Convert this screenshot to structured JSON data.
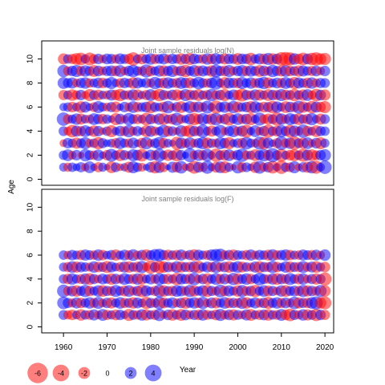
{
  "chart_data": [
    {
      "type": "scatter",
      "subtype": "bubble",
      "title": "Joint sample residuals log(N)",
      "ylabel": "Age",
      "xlim": [
        1955,
        2022
      ],
      "ylim": [
        -0.5,
        11.5
      ],
      "yticks": [
        0,
        2,
        4,
        6,
        8,
        10
      ],
      "ages": [
        1,
        2,
        3,
        4,
        5,
        6,
        7,
        8,
        9,
        10
      ],
      "years": [
        1960,
        1961,
        1962,
        1963,
        1964,
        1965,
        1966,
        1967,
        1968,
        1969,
        1970,
        1971,
        1972,
        1973,
        1974,
        1975,
        1976,
        1977,
        1978,
        1979,
        1980,
        1981,
        1982,
        1983,
        1984,
        1985,
        1986,
        1987,
        1988,
        1989,
        1990,
        1991,
        1992,
        1993,
        1994,
        1995,
        1996,
        1997,
        1998,
        1999,
        2000,
        2001,
        2002,
        2003,
        2004,
        2005,
        2006,
        2007,
        2008,
        2009,
        2010,
        2011,
        2012,
        2013,
        2014,
        2015,
        2016,
        2017,
        2018,
        2019,
        2020
      ],
      "residuals": [
        [
          1.1,
          -1.2,
          1.3,
          0.9,
          1.5,
          -1.0,
          2.0,
          0.8,
          -1.5,
          1.2,
          0.6,
          -2.0,
          1.4,
          -0.9,
          1.0,
          -1.8,
          2.1,
          1.3,
          -1.1,
          0.7,
          1.6,
          -2.2,
          1.9,
          -1.4,
          0.5,
          1.8,
          -1.6,
          2.3,
          -0.8,
          1.1,
          -2.4,
          1.7,
          -1.3,
          2.5,
          0.9,
          -1.7,
          2.0,
          -2.1,
          1.2,
          -0.6,
          2.2,
          -1.5,
          1.4,
          0.8,
          -1.9,
          2.4,
          -1.2,
          1.6,
          -2.3,
          1.0,
          -2.6,
          1.3,
          -1.4,
          2.1,
          -0.9,
          1.5,
          -1.8,
          2.2,
          -2.5,
          1.1,
          2.6
        ],
        [
          1.3,
          2.0,
          -1.1,
          1.6,
          -0.7,
          2.2,
          1.4,
          -1.3,
          1.9,
          0.8,
          -1.6,
          2.4,
          1.2,
          -2.0,
          1.5,
          -1.0,
          2.1,
          1.7,
          -2.3,
          0.9,
          1.8,
          -1.4,
          2.5,
          1.1,
          -1.9,
          1.3,
          -2.2,
          1.6,
          0.7,
          2.8,
          -1.2,
          1.9,
          -1.5,
          2.3,
          1.0,
          -2.6,
          1.4,
          -1.8,
          2.0,
          -1.1,
          1.7,
          2.6,
          -1.3,
          1.2,
          -2.0,
          1.5,
          2.2,
          -1.6,
          2.9,
          1.4,
          -2.4,
          1.1,
          -1.7,
          -2.1,
          1.3,
          -2.5,
          1.8,
          -2.0,
          -1.4,
          1.6,
          2.1
        ],
        [
          -0.9,
          1.6,
          1.2,
          -1.8,
          1.4,
          2.1,
          -1.1,
          1.3,
          -2.2,
          1.5,
          0.9,
          1.1,
          -1.5,
          2.0,
          1.2,
          -1.3,
          1.8,
          0.9,
          -1.7,
          2.2,
          -1.0,
          1.4,
          2.3,
          -1.6,
          1.1,
          0.7,
          -2.4,
          1.9,
          -1.3,
          2.0,
          -1.1,
          1.5,
          2.2,
          -1.9,
          1.3,
          -1.2,
          2.1,
          1.6,
          -2.1,
          1.0,
          1.4,
          -1.6,
          2.3,
          1.2,
          -1.1,
          2.5,
          -2.2,
          1.8,
          0.8,
          -1.5,
          2.7,
          -1.3,
          1.9,
          -2.6,
          1.4,
          -1.8,
          2.0,
          -1.0,
          1.7,
          -2.1,
          1.2
        ],
        [
          1.4,
          -1.1,
          -2.3,
          1.8,
          -1.5,
          2.0,
          1.2,
          -1.9,
          1.6,
          -0.8,
          1.3,
          -2.1,
          1.0,
          1.7,
          -1.4,
          2.2,
          -1.2,
          1.5,
          0.9,
          -2.0,
          1.9,
          -1.3,
          1.1,
          2.4,
          -1.7,
          1.4,
          -0.9,
          2.0,
          -1.6,
          -2.2,
          1.6,
          -1.4,
          2.5,
          1.1,
          -1.8,
          1.2,
          2.3,
          -1.0,
          1.5,
          2.1,
          -1.3,
          1.8,
          -2.4,
          1.0,
          2.0,
          -1.1,
          1.6,
          -2.5,
          1.3,
          -1.7,
          2.2,
          1.4,
          -2.3,
          1.9,
          -1.2,
          2.6,
          -1.6,
          1.1,
          -2.0,
          1.5,
          1.3
        ],
        [
          2.6,
          -1.4,
          1.2,
          1.9,
          -1.8,
          1.1,
          -1.2,
          2.0,
          1.5,
          -1.6,
          1.3,
          0.8,
          -2.1,
          1.7,
          -1.0,
          2.2,
          1.4,
          -1.5,
          1.1,
          -2.3,
          1.6,
          -1.1,
          1.9,
          -2.0,
          1.2,
          -1.7,
          2.4,
          -1.3,
          1.0,
          1.8,
          -2.2,
          -1.5,
          2.1,
          1.3,
          -1.9,
          2.3,
          -1.1,
          1.6,
          -2.4,
          1.2,
          2.0,
          -1.4,
          1.7,
          -2.1,
          1.1,
          2.5,
          -1.3,
          -1.8,
          1.4,
          -2.6,
          1.9,
          -1.2,
          2.1,
          1.5,
          -2.0,
          1.3,
          -1.6,
          2.2,
          1.0,
          -1.8,
          1.4
        ],
        [
          1.0,
          1.3,
          -1.6,
          1.1,
          -2.0,
          1.8,
          0.9,
          -1.4,
          2.1,
          1.2,
          -1.1,
          1.5,
          -1.8,
          0.8,
          1.6,
          -1.2,
          2.0,
          -1.5,
          1.3,
          1.7,
          -2.2,
          1.4,
          1.1,
          -1.7,
          2.3,
          -0.9,
          1.5,
          -2.0,
          1.2,
          2.1,
          -1.6,
          1.8,
          -1.3,
          2.4,
          1.0,
          -2.5,
          1.4,
          1.9,
          -1.2,
          2.2,
          -1.8,
          1.3,
          1.6,
          -2.1,
          2.0,
          1.2,
          -1.7,
          1.5,
          -2.3,
          1.9,
          1.1,
          -2.0,
          1.7,
          -1.4,
          2.4,
          -1.9,
          1.2,
          -2.2,
          1.8,
          -1.6,
          -2.1
        ],
        [
          -1.5,
          1.2,
          -1.9,
          -1.3,
          1.6,
          -1.0,
          -2.1,
          1.4,
          -1.7,
          1.1,
          -1.2,
          1.8,
          -1.6,
          -2.2,
          1.3,
          -1.4,
          1.9,
          -1.8,
          1.0,
          -1.5,
          2.0,
          -1.3,
          -2.3,
          1.5,
          -1.1,
          1.7,
          -1.9,
          -1.2,
          2.1,
          -1.7,
          1.4,
          -2.0,
          1.2,
          -1.5,
          2.2,
          -1.4,
          1.6,
          -2.1,
          1.1,
          1.8,
          -1.6,
          -2.4,
          1.5,
          -1.3,
          1.9,
          -1.8,
          1.2,
          -2.0,
          1.6,
          -1.5,
          2.1,
          -1.7,
          1.4,
          -2.2,
          1.3,
          -1.9,
          2.0,
          -1.2,
          -2.3,
          1.7,
          -1.8
        ],
        [
          2.0,
          1.4,
          1.8,
          -1.1,
          1.5,
          1.9,
          -1.3,
          1.2,
          1.7,
          -1.6,
          1.3,
          2.1,
          1.0,
          -1.4,
          1.6,
          1.2,
          -1.9,
          1.8,
          1.1,
          1.5,
          -1.2,
          2.2,
          1.4,
          -1.7,
          1.9,
          1.3,
          -1.5,
          2.0,
          1.6,
          -1.8,
          1.2,
          2.3,
          1.4,
          -1.3,
          1.7,
          2.6,
          1.1,
          -2.0,
          1.8,
          1.5,
          -1.6,
          2.1,
          1.3,
          1.9,
          -1.4,
          1.6,
          2.2,
          -1.8,
          1.2,
          1.7,
          -1.5,
          2.0,
          1.4,
          -2.1,
          1.8,
          1.3,
          -1.7,
          1.9,
          -1.2,
          1.5,
          1.4
        ],
        [
          2.2,
          -1.3,
          1.6,
          2.1,
          -1.5,
          1.9,
          1.4,
          -2.0,
          1.7,
          -1.2,
          1.5,
          1.8,
          -1.6,
          2.0,
          -1.1,
          1.6,
          2.3,
          1.3,
          -1.4,
          2.5,
          -1.7,
          1.2,
          1.9,
          -1.8,
          1.5,
          2.1,
          -1.3,
          1.7,
          -2.2,
          1.4,
          2.0,
          -1.6,
          1.8,
          1.3,
          -1.9,
          2.4,
          1.5,
          -1.7,
          2.1,
          -1.2,
          1.6,
          2.0,
          -1.5,
          1.9,
          1.4,
          -2.0,
          1.7,
          -1.3,
          2.2,
          1.5,
          -1.8,
          2.0,
          -1.6,
          1.4,
          -1.9,
          1.8,
          1.3,
          -1.5,
          1.7,
          -1.1,
          1.6
        ],
        [
          -1.8,
          1.3,
          -1.5,
          -2.0,
          -2.3,
          1.2,
          -2.4,
          -1.4,
          1.6,
          -1.1,
          1.7,
          1.5,
          -1.3,
          1.8,
          1.4,
          -1.6,
          -2.6,
          1.2,
          -1.7,
          1.3,
          1.9,
          -1.5,
          1.4,
          1.8,
          -1.2,
          1.6,
          1.3,
          -1.9,
          1.5,
          -2.1,
          1.7,
          1.2,
          -1.4,
          1.9,
          -1.6,
          2.0,
          1.3,
          -1.8,
          1.6,
          1.4,
          -2.0,
          1.7,
          1.5,
          -2.2,
          1.3,
          1.8,
          -1.7,
          2.1,
          -1.9,
          1.6,
          -2.7,
          -2.8,
          -2.5,
          1.9,
          -1.6,
          -2.3,
          1.7,
          -2.2,
          -2.6,
          -1.9,
          -2.1
        ]
      ]
    },
    {
      "type": "scatter",
      "subtype": "bubble",
      "title": "Joint sample residuals log(F)",
      "ylabel": "Age",
      "xlabel": "Year",
      "xlim": [
        1955,
        2022
      ],
      "ylim": [
        -0.5,
        11.5
      ],
      "yticks": [
        0,
        2,
        4,
        6,
        8,
        10
      ],
      "xticks": [
        1960,
        1970,
        1980,
        1990,
        2000,
        2010,
        2020
      ],
      "ages": [
        1,
        2,
        3,
        4,
        5,
        6
      ],
      "years": [
        1960,
        1961,
        1962,
        1963,
        1964,
        1965,
        1966,
        1967,
        1968,
        1969,
        1970,
        1971,
        1972,
        1973,
        1974,
        1975,
        1976,
        1977,
        1978,
        1979,
        1980,
        1981,
        1982,
        1983,
        1984,
        1985,
        1986,
        1987,
        1988,
        1989,
        1990,
        1991,
        1992,
        1993,
        1994,
        1995,
        1996,
        1997,
        1998,
        1999,
        2000,
        2001,
        2002,
        2003,
        2004,
        2005,
        2006,
        2007,
        2008,
        2009,
        2010,
        2011,
        2012,
        2013,
        2014,
        2015,
        2016,
        2017,
        2018,
        2019,
        2020
      ],
      "residuals": [
        [
          1.4,
          -1.2,
          -1.6,
          1.1,
          -1.9,
          1.3,
          -1.4,
          1.8,
          -1.1,
          2.0,
          -1.5,
          1.2,
          -1.7,
          1.6,
          1.0,
          -2.1,
          1.4,
          -1.3,
          1.9,
          -1.8,
          1.2,
          -1.5,
          2.2,
          -1.0,
          1.6,
          -1.9,
          1.3,
          -2.0,
          1.7,
          -1.2,
          1.5,
          -1.6,
          1.9,
          -1.4,
          1.1,
          -1.7,
          2.1,
          -1.3,
          1.6,
          -1.8,
          1.4,
          -1.1,
          1.8,
          -2.0,
          1.2,
          -1.5,
          1.7,
          -1.9,
          1.3,
          -1.4,
          2.0,
          -1.6,
          -2.3,
          1.5,
          -1.2,
          1.9,
          -1.8,
          1.4,
          -2.2,
          1.6,
          -1.5
        ],
        [
          2.3,
          1.5,
          -1.2,
          1.8,
          -1.6,
          1.3,
          1.9,
          -1.4,
          2.1,
          -1.1,
          1.6,
          -1.8,
          1.2,
          2.0,
          -1.5,
          1.4,
          -1.9,
          1.7,
          1.1,
          -2.2,
          1.5,
          -1.3,
          2.4,
          -1.7,
          1.3,
          1.8,
          -1.2,
          1.6,
          -2.0,
          1.4,
          1.9,
          -1.5,
          2.2,
          -1.1,
          1.7,
          -1.8,
          1.3,
          2.0,
          -1.6,
          1.5,
          -1.4,
          2.1,
          -1.9,
          1.2,
          1.8,
          -1.3,
          1.6,
          -2.1,
          1.4,
          1.9,
          -1.5,
          1.7,
          -1.2,
          2.3,
          -1.8,
          1.5,
          -1.6,
          2.0,
          2.5,
          -1.9,
          -2.4
        ],
        [
          2.4,
          -1.3,
          1.7,
          -1.9,
          1.4,
          2.2,
          -1.6,
          1.2,
          1.9,
          -2.0,
          1.5,
          -1.4,
          2.1,
          1.3,
          -1.7,
          2.0,
          -1.2,
          1.6,
          -2.3,
          1.8,
          1.1,
          -1.5,
          2.3,
          -1.9,
          1.4,
          -1.6,
          2.0,
          1.7,
          -1.3,
          2.2,
          -1.8,
          1.3,
          1.9,
          -2.1,
          1.5,
          -1.2,
          2.4,
          -1.6,
          1.8,
          1.2,
          -1.9,
          2.1,
          -1.4,
          1.6,
          -2.2,
          1.3,
          2.0,
          -1.7,
          1.5,
          -1.1,
          1.9,
          -2.0,
          1.4,
          1.7,
          -1.5,
          2.2,
          -1.8,
          1.6,
          -1.3,
          2.1,
          -1.9
        ],
        [
          1.3,
          -1.6,
          1.9,
          1.2,
          -1.4,
          1.8,
          -2.0,
          1.5,
          -1.1,
          1.7,
          1.3,
          -1.9,
          1.6,
          -1.2,
          2.0,
          1.4,
          -1.5,
          1.9,
          -1.8,
          1.1,
          1.7,
          -1.3,
          2.1,
          1.5,
          -1.6,
          1.2,
          -2.2,
          1.8,
          1.4,
          -1.7,
          2.3,
          -1.1,
          1.6,
          -1.9,
          1.3,
          2.0,
          -1.5,
          1.7,
          -1.2,
          2.2,
          -1.8,
          1.4,
          1.9,
          -1.6,
          1.2,
          2.4,
          1.5,
          -1.3,
          1.8,
          -2.0,
          1.6,
          -1.4,
          2.1,
          1.3,
          -1.7,
          1.9,
          -1.1,
          1.5,
          -1.8,
          1.4,
          -2.5
        ],
        [
          1.2,
          -1.5,
          2.0,
          -1.8,
          1.6,
          1.3,
          -1.2,
          1.9,
          -1.6,
          1.4,
          -2.1,
          1.7,
          1.1,
          -1.4,
          1.8,
          -1.9,
          1.3,
          -1.7,
          2.2,
          -1.1,
          -2.6,
          1.5,
          -2.4,
          -1.9,
          1.6,
          -1.3,
          2.0,
          -1.8,
          1.4,
          -1.6,
          1.9,
          -2.2,
          1.2,
          1.7,
          -1.5,
          2.1,
          -1.3,
          1.6,
          -1.9,
          1.4,
          2.0,
          -1.7,
          1.3,
          -1.2,
          1.8,
          -2.0,
          1.5,
          -1.4,
          2.2,
          -1.6,
          1.1,
          1.9,
          -1.8,
          1.4,
          -1.5,
          2.1,
          -1.3,
          1.7,
          -2.0,
          1.2,
          -1.6
        ],
        [
          1.3,
          -1.1,
          1.6,
          1.2,
          -1.5,
          1.8,
          1.4,
          -1.3,
          1.9,
          -1.6,
          1.1,
          1.5,
          -1.8,
          1.2,
          1.7,
          -1.4,
          2.0,
          -1.2,
          1.6,
          -1.9,
          1.4,
          2.1,
          2.3,
          1.5,
          -1.7,
          1.3,
          -1.6,
          1.8,
          -1.1,
          1.5,
          -2.0,
          1.7,
          1.2,
          -1.4,
          1.9,
          2.2,
          2.4,
          -1.3,
          1.6,
          -1.8,
          1.4,
          1.2,
          -1.5,
          1.8,
          -1.2,
          1.6,
          1.3,
          -1.7,
          2.0,
          -1.4,
          1.5,
          1.9,
          -1.6,
          1.2,
          -1.3,
          1.8,
          1.4,
          -1.5,
          1.7,
          -1.1,
          1.9
        ]
      ]
    }
  ],
  "legend": {
    "items": [
      {
        "label": "-6",
        "value": -6
      },
      {
        "label": "-4",
        "value": -4
      },
      {
        "label": "-2",
        "value": -2
      },
      {
        "label": "0",
        "value": 0
      },
      {
        "label": "2",
        "value": 2
      },
      {
        "label": "4",
        "value": 4
      }
    ]
  },
  "colors": {
    "positive": "#0000ff",
    "negative": "#ff0000",
    "title": "#7f7f7f"
  }
}
